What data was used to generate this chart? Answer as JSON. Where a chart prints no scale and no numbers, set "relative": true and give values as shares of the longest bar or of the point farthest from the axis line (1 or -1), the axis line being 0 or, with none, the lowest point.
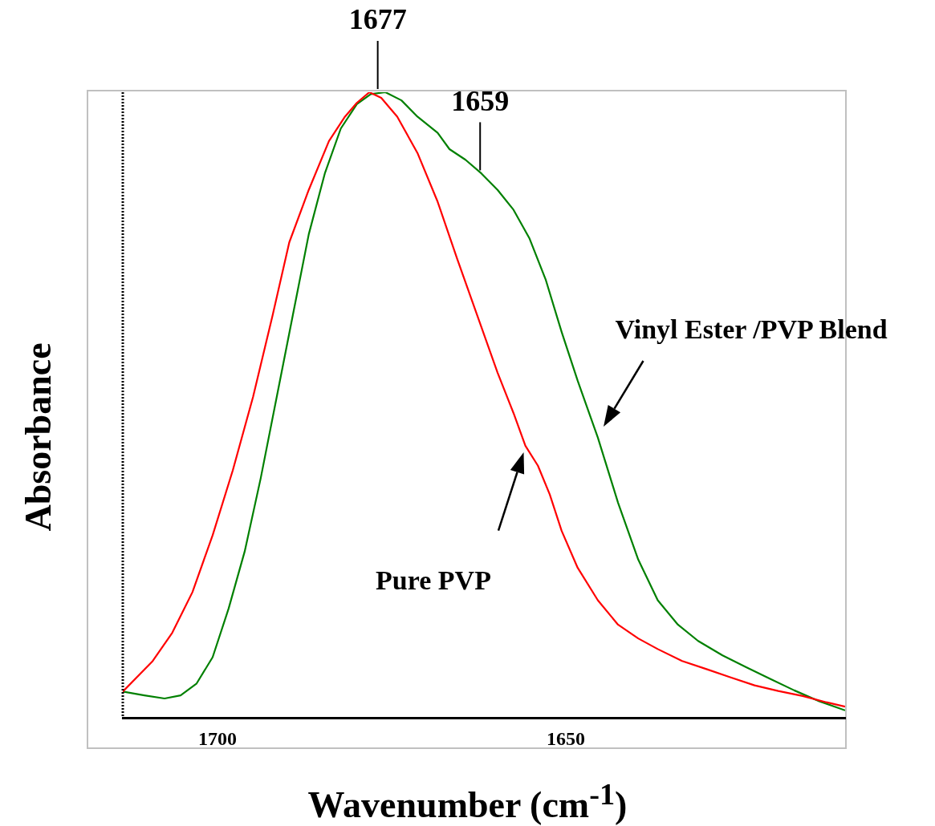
{
  "chart_data": {
    "type": "line",
    "relative": true,
    "xlabel": "Wavenumber (cm$^{-1}$)",
    "ylabel": "Absorbance",
    "xlim": [
      1713.6,
      1609.9
    ],
    "xticks": [
      1700,
      1650
    ],
    "grid": false,
    "legend": false,
    "marker": "none",
    "line_style": "solid",
    "annotations": [
      {
        "text": "1677",
        "x": 1677,
        "y": 1
      },
      {
        "text": "1659",
        "x": 1662.3,
        "y": 0.87
      }
    ],
    "series": [
      {
        "name": "Pure PVP",
        "color": "#ff0000",
        "x": [
          1713.6,
          1709.3,
          1706.5,
          1703.6,
          1700.7,
          1697.8,
          1694.9,
          1692.1,
          1689.7,
          1686.9,
          1684.0,
          1681.7,
          1680.0,
          1678.2,
          1676.5,
          1674.2,
          1671.3,
          1668.4,
          1665.6,
          1662.7,
          1659.8,
          1657.5,
          1655.8,
          1654.0,
          1652.3,
          1650.6,
          1648.3,
          1645.4,
          1642.5,
          1639.6,
          1636.8,
          1633.3,
          1629.8,
          1626.4,
          1622.9,
          1619.5,
          1616.0,
          1612.6,
          1609.9
        ],
        "values": [
          0.042,
          0.091,
          0.136,
          0.201,
          0.292,
          0.396,
          0.513,
          0.643,
          0.76,
          0.844,
          0.922,
          0.961,
          0.983,
          1,
          0.991,
          0.961,
          0.903,
          0.825,
          0.734,
          0.643,
          0.552,
          0.487,
          0.435,
          0.403,
          0.357,
          0.299,
          0.24,
          0.188,
          0.149,
          0.127,
          0.11,
          0.091,
          0.078,
          0.065,
          0.052,
          0.043,
          0.035,
          0.025,
          0.018
        ]
      },
      {
        "name": "Vinyl Ester /PVP Blend",
        "color": "#008000",
        "x": [
          1713.6,
          1710.5,
          1707.6,
          1705.3,
          1703.0,
          1700.7,
          1698.4,
          1696.1,
          1693.8,
          1691.5,
          1689.2,
          1686.9,
          1684.6,
          1682.3,
          1680.0,
          1678.0,
          1675.9,
          1673.6,
          1671.3,
          1668.4,
          1666.7,
          1664.4,
          1662.1,
          1659.8,
          1657.5,
          1655.2,
          1652.9,
          1650.6,
          1648.3,
          1645.4,
          1642.5,
          1639.6,
          1636.8,
          1633.9,
          1631.0,
          1627.5,
          1624.1,
          1620.6,
          1617.2,
          1613.7,
          1609.9
        ],
        "values": [
          0.042,
          0.036,
          0.031,
          0.036,
          0.055,
          0.097,
          0.175,
          0.266,
          0.383,
          0.513,
          0.643,
          0.773,
          0.87,
          0.942,
          0.981,
          0.997,
          1,
          0.987,
          0.961,
          0.935,
          0.909,
          0.892,
          0.87,
          0.844,
          0.812,
          0.766,
          0.701,
          0.617,
          0.539,
          0.448,
          0.344,
          0.253,
          0.188,
          0.149,
          0.123,
          0.1,
          0.081,
          0.062,
          0.044,
          0.027,
          0.012
        ]
      }
    ]
  }
}
